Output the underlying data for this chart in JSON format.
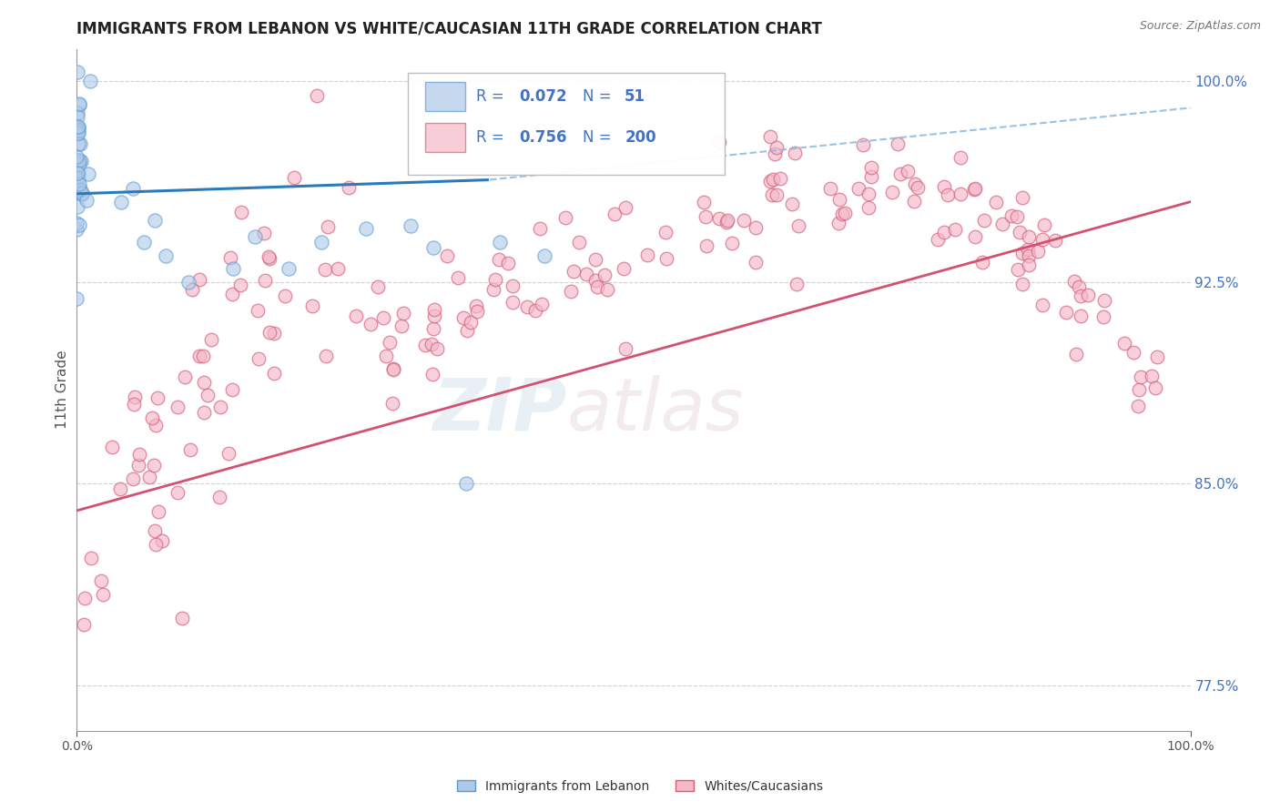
{
  "title": "IMMIGRANTS FROM LEBANON VS WHITE/CAUCASIAN 11TH GRADE CORRELATION CHART",
  "source_text": "Source: ZipAtlas.com",
  "ylabel": "11th Grade",
  "xlim": [
    0.0,
    1.0
  ],
  "ylim": [
    0.758,
    1.012
  ],
  "yticks": [
    0.775,
    0.85,
    0.925,
    1.0
  ],
  "ytick_labels": [
    "77.5%",
    "85.0%",
    "92.5%",
    "100.0%"
  ],
  "blue_R": 0.072,
  "blue_N": 51,
  "pink_R": 0.756,
  "pink_N": 200,
  "blue_dot_color": "#aec8e8",
  "blue_dot_edge": "#5b9bd5",
  "pink_dot_color": "#f4b8c8",
  "pink_dot_edge": "#d4607a",
  "blue_line_color": "#2b7bba",
  "pink_line_color": "#d45070",
  "blue_dash_color": "#88b8e0",
  "legend_label_1": "Immigrants from Lebanon",
  "legend_label_2": "Whites/Caucasians",
  "right_axis_label_color": "#4472c4",
  "title_color": "#222222",
  "grid_color": "#d0d0d0",
  "axis_color": "#999999"
}
